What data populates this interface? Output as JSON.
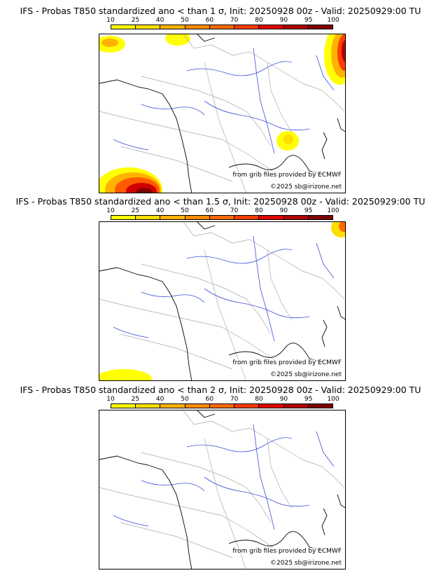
{
  "panels": [
    {
      "title": "IFS - Probas T850  standardized ano < than 1 σ, Init: 20250928 00z - Valid: 20250929:00 TU"
    },
    {
      "title": "IFS - Probas T850  standardized ano < than 1.5 σ, Init: 20250928 00z - Valid: 20250929:00 TU"
    },
    {
      "title": "IFS - Probas T850  standardized ano < than 2 σ, Init: 20250928 00z - Valid: 20250929:00 TU"
    }
  ],
  "colorbar": {
    "labels": [
      "10",
      "25",
      "40",
      "50",
      "60",
      "70",
      "80",
      "90",
      "95",
      "100"
    ],
    "colors": [
      "#ffff00",
      "#ffdd00",
      "#ffb300",
      "#ff8c00",
      "#ff6a00",
      "#ff3c00",
      "#e00000",
      "#b00000",
      "#800000"
    ]
  },
  "source_text": "from grib files provided by ECMWF",
  "copyright_text": "©2025 sb@irizone.net",
  "colors": {
    "rivers": "#3a4fd8",
    "borders": "#aaaaaa",
    "coast": "#000000"
  }
}
